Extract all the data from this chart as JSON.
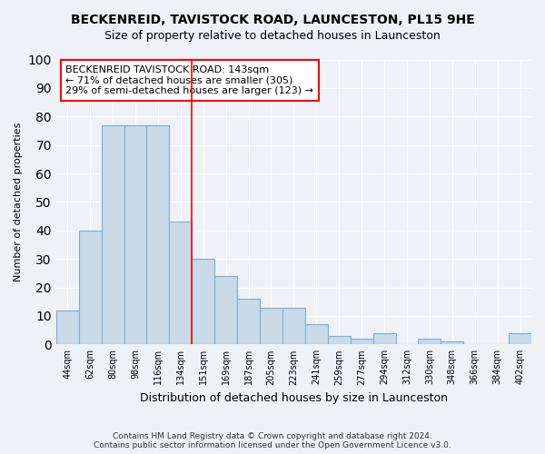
{
  "title": "BECKENREID, TAVISTOCK ROAD, LAUNCESTON, PL15 9HE",
  "subtitle": "Size of property relative to detached houses in Launceston",
  "xlabel": "Distribution of detached houses by size in Launceston",
  "ylabel": "Number of detached properties",
  "categories": [
    "44sqm",
    "62sqm",
    "80sqm",
    "98sqm",
    "116sqm",
    "134sqm",
    "151sqm",
    "169sqm",
    "187sqm",
    "205sqm",
    "223sqm",
    "241sqm",
    "259sqm",
    "277sqm",
    "294sqm",
    "312sqm",
    "330sqm",
    "348sqm",
    "366sqm",
    "384sqm",
    "402sqm"
  ],
  "values": [
    12,
    40,
    77,
    77,
    77,
    43,
    30,
    24,
    16,
    13,
    13,
    7,
    3,
    2,
    4,
    0,
    2,
    1,
    0,
    0,
    4
  ],
  "bar_color": "#c8d9e8",
  "bar_edge_color": "#7bafd4",
  "ylim": [
    0,
    100
  ],
  "yticks": [
    0,
    10,
    20,
    30,
    40,
    50,
    60,
    70,
    80,
    90,
    100
  ],
  "property_line_x": 5.5,
  "property_line_color": "red",
  "annotation_line1": "BECKENREID TAVISTOCK ROAD: 143sqm",
  "annotation_line2": "← 71% of detached houses are smaller (305)",
  "annotation_line3": "29% of semi-detached houses are larger (123) →",
  "footer_line1": "Contains HM Land Registry data © Crown copyright and database right 2024.",
  "footer_line2": "Contains public sector information licensed under the Open Government Licence v3.0.",
  "background_color": "#eef2f7",
  "plot_bg_color": "#eef2f7"
}
